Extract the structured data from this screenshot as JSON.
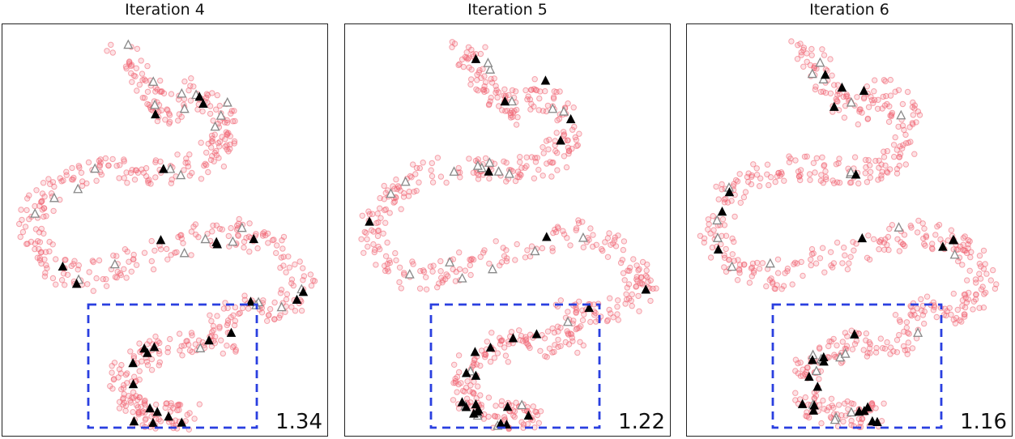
{
  "chart_data": [
    {
      "type": "scatter",
      "title": "Iteration 4",
      "score": "1.34",
      "highlight_color": "#2a3fe0",
      "background_points_color": "#f06070",
      "filled_marker_color": "#000000",
      "open_marker_color": "#888888",
      "filled_seed": 41,
      "open_seed": 17
    },
    {
      "type": "scatter",
      "title": "Iteration 5",
      "score": "1.22",
      "highlight_color": "#2a3fe0",
      "background_points_color": "#f06070",
      "filled_marker_color": "#000000",
      "open_marker_color": "#888888",
      "filled_seed": 52,
      "open_seed": 23
    },
    {
      "type": "scatter",
      "title": "Iteration 6",
      "score": "1.16",
      "highlight_color": "#2a3fe0",
      "background_points_color": "#f06070",
      "filled_marker_color": "#000000",
      "open_marker_color": "#888888",
      "filled_seed": 63,
      "open_seed": 29
    }
  ]
}
